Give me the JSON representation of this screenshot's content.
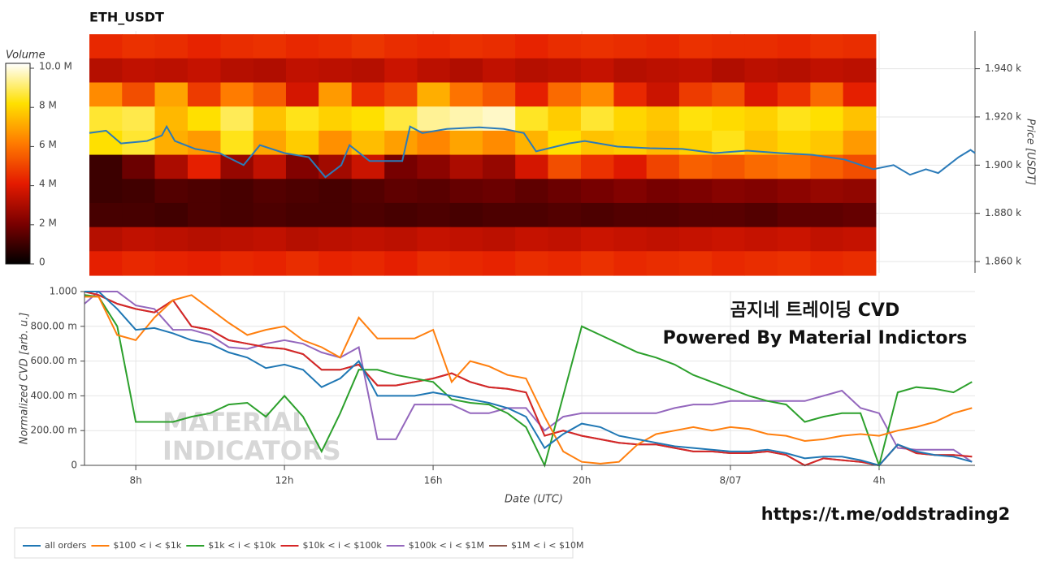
{
  "chart_data": [
    {
      "type": "heatmap",
      "title": "ETH_USDT",
      "y_label": "Price [USDT]",
      "colorbar_label": "Volume",
      "xlim": [
        6.75,
        30.58
      ],
      "ylim": [
        1855.3,
        1955.7
      ],
      "yticks": [
        {
          "value": 1860,
          "label": "1.860 k"
        },
        {
          "value": 1880,
          "label": "1.880 k"
        },
        {
          "value": 1900,
          "label": "1.900 k"
        },
        {
          "value": 1920,
          "label": "1.920 k"
        },
        {
          "value": 1940,
          "label": "1.940 k"
        }
      ],
      "zlim": [
        0,
        10250000
      ],
      "zticks": [
        0,
        {
          "value": 2000000,
          "label": "2 M"
        },
        {
          "value": 4000000,
          "label": "4 M"
        },
        {
          "value": 6000000,
          "label": "6 M"
        },
        {
          "value": 8000000,
          "label": "8 M"
        },
        {
          "value": 10000000,
          "label": "10.0 M"
        }
      ],
      "colorscale": [
        "#000000",
        "#7a0000",
        "#e41a00",
        "#ff7a00",
        "#ffe000",
        "#ffffff"
      ],
      "x": [
        7.19,
        8.07,
        8.95,
        9.84,
        10.72,
        11.6,
        12.48,
        13.36,
        14.25,
        15.13,
        16.01,
        16.89,
        17.77,
        18.65,
        19.53,
        20.42,
        21.3,
        22.18,
        23.06,
        23.94,
        24.82,
        25.71,
        26.59,
        27.47
      ],
      "y": [
        1949.3,
        1939.3,
        1929.3,
        1919.3,
        1909.3,
        1899.3,
        1889.3,
        1879.3,
        1869.3,
        1859.3
      ],
      "z": [
        [
          4400000.0,
          4600000.0,
          4500000.0,
          4300000.0,
          4500000.0,
          4600000.0,
          4400000.0,
          4500000.0,
          4700000.0,
          4500000.0,
          4400000.0,
          4600000.0,
          4500000.0,
          4300000.0,
          4500000.0,
          4600000.0,
          4500000.0,
          4400000.0,
          4600000.0,
          4500000.0,
          4500000.0,
          4400000.0,
          4600000.0,
          4500000.0
        ],
        [
          3200000.0,
          3400000.0,
          3300000.0,
          3500000.0,
          3200000.0,
          3100000.0,
          3400000.0,
          3300000.0,
          3200000.0,
          3600000.0,
          3300000.0,
          3100000.0,
          3400000.0,
          3200000.0,
          3300000.0,
          3500000.0,
          3200000.0,
          3300000.0,
          3400000.0,
          3100000.0,
          3300000.0,
          3200000.0,
          3400000.0,
          3300000.0
        ],
        [
          6500000.0,
          5200000.0,
          7000000.0,
          4800000.0,
          6200000.0,
          5500000.0,
          3800000.0,
          6800000.0,
          4500000.0,
          5000000.0,
          7200000.0,
          6000000.0,
          5400000.0,
          4200000.0,
          5800000.0,
          6500000.0,
          4400000.0,
          3600000.0,
          4800000.0,
          5200000.0,
          3900000.0,
          4600000.0,
          5800000.0,
          4200000.0
        ],
        [
          8600000.0,
          8800000.0,
          7400000.0,
          8200000.0,
          8900000.0,
          7600000.0,
          8400000.0,
          7900000.0,
          8200000.0,
          8700000.0,
          9400000.0,
          9600000.0,
          9800000.0,
          8500000.0,
          7800000.0,
          8600000.0,
          8000000.0,
          7700000.0,
          8300000.0,
          8100000.0,
          7900000.0,
          8400000.0,
          8200000.0,
          7600000.0
        ],
        [
          8200000.0,
          8600000.0,
          7200000.0,
          6800000.0,
          8400000.0,
          7000000.0,
          7800000.0,
          6600000.0,
          7500000.0,
          6900000.0,
          6400000.0,
          7000000.0,
          6500000.0,
          7300000.0,
          8200000.0,
          7600000.0,
          7800000.0,
          7400000.0,
          7900000.0,
          8400000.0,
          7600000.0,
          8000000.0,
          7700000.0,
          6800000.0
        ],
        [
          1000000.0,
          1800000.0,
          3000000.0,
          4200000.0,
          2600000.0,
          3400000.0,
          2200000.0,
          2800000.0,
          3600000.0,
          2000000.0,
          2400000.0,
          3000000.0,
          2600000.0,
          3800000.0,
          5200000.0,
          4600000.0,
          4000000.0,
          5000000.0,
          5600000.0,
          5400000.0,
          5800000.0,
          6000000.0,
          5600000.0,
          5200000.0
        ],
        [
          1000000.0,
          1100000.0,
          1400000.0,
          1300000.0,
          1200000.0,
          1400000.0,
          1300000.0,
          1200000.0,
          1400000.0,
          1600000.0,
          1500000.0,
          1700000.0,
          1800000.0,
          1600000.0,
          1800000.0,
          2000000.0,
          2200000.0,
          2000000.0,
          2100000.0,
          2300000.0,
          2200000.0,
          2400000.0,
          2600000.0,
          2500000.0
        ],
        [
          1200000.0,
          1200000.0,
          1100000.0,
          1300000.0,
          1200000.0,
          1300000.0,
          1200000.0,
          1200000.0,
          1300000.0,
          1200000.0,
          1300000.0,
          1200000.0,
          1300000.0,
          1300000.0,
          1400000.0,
          1300000.0,
          1400000.0,
          1400000.0,
          1500000.0,
          1500000.0,
          1400000.0,
          1600000.0,
          1600000.0,
          1700000.0
        ],
        [
          3200000.0,
          3400000.0,
          3300000.0,
          3200000.0,
          3300000.0,
          3400000.0,
          3200000.0,
          3300000.0,
          3400000.0,
          3300000.0,
          3500000.0,
          3400000.0,
          3300000.0,
          3500000.0,
          3400000.0,
          3600000.0,
          3500000.0,
          3400000.0,
          3500000.0,
          3600000.0,
          3500000.0,
          3600000.0,
          3400000.0,
          3500000.0
        ],
        [
          4200000.0,
          4400000.0,
          4300000.0,
          4200000.0,
          4400000.0,
          4300000.0,
          4500000.0,
          4300000.0,
          4400000.0,
          4200000.0,
          4500000.0,
          4400000.0,
          4300000.0,
          4500000.0,
          4400000.0,
          4600000.0,
          4400000.0,
          4500000.0,
          4600000.0,
          4400000.0,
          4500000.0,
          4600000.0,
          4400000.0,
          4500000.0
        ]
      ],
      "line": {
        "color": "#2b7bb9",
        "x": [
          6.75,
          7.2,
          7.6,
          8.3,
          8.7,
          8.83,
          9.05,
          9.6,
          10.25,
          10.9,
          11.34,
          12,
          12.65,
          13.1,
          13.53,
          13.75,
          14.29,
          15.17,
          15.38,
          15.71,
          16.37,
          17.24,
          17.9,
          18.44,
          18.77,
          19.65,
          20.08,
          20.96,
          21.83,
          22.71,
          23.58,
          24.45,
          25.33,
          26.2,
          27.08,
          27.84,
          28.39,
          28.83,
          29.26,
          29.59,
          30.14,
          30.46,
          30.58
        ],
        "values": [
          1913.3,
          1914.3,
          1909,
          1910,
          1912.3,
          1916,
          1910,
          1906.7,
          1905,
          1900,
          1908.3,
          1905,
          1903.3,
          1895,
          1900,
          1908.3,
          1901.7,
          1901.7,
          1916,
          1913.3,
          1915,
          1915.7,
          1915,
          1913.3,
          1905.7,
          1909,
          1910,
          1907.7,
          1907,
          1906.7,
          1905,
          1906,
          1905,
          1904.3,
          1902.3,
          1898.3,
          1900,
          1896,
          1898.3,
          1896.7,
          1903.3,
          1906.3,
          1905
        ]
      }
    },
    {
      "type": "line",
      "x_label": "Date (UTC)",
      "y_label": "Normalized CVD [arb. u.]",
      "xlim": [
        6.62,
        30.58
      ],
      "ylim": [
        0,
        1.0
      ],
      "xticks": [
        {
          "value": 8,
          "label": "8h"
        },
        {
          "value": 12,
          "label": "12h"
        },
        {
          "value": 16,
          "label": "16h"
        },
        {
          "value": 20,
          "label": "20h"
        },
        {
          "value": 24,
          "label": "8/07"
        },
        {
          "value": 28,
          "label": "4h"
        }
      ],
      "yticks": [
        0,
        {
          "value": 0.2,
          "label": "200.00 m"
        },
        {
          "value": 0.4,
          "label": "400.00 m"
        },
        {
          "value": 0.6,
          "label": "600.00 m"
        },
        {
          "value": 0.8,
          "label": "800.00 m"
        },
        {
          "value": 1,
          "label": "1.000"
        }
      ],
      "grid": true,
      "annotations": [
        "곰지네 트레이딩 CVD",
        "Powered By Material Indictors",
        "https://t.me/oddstrading2",
        "MATERIAL",
        "INDICATORS"
      ],
      "x": [
        6.62,
        7,
        7.5,
        8,
        8.5,
        9,
        9.5,
        10,
        10.5,
        11,
        11.5,
        12,
        12.5,
        13,
        13.5,
        14,
        14.5,
        15,
        15.5,
        16,
        16.5,
        17,
        17.5,
        18,
        18.5,
        19,
        19.5,
        20,
        20.5,
        21,
        21.5,
        22,
        22.5,
        23,
        23.5,
        24,
        24.5,
        25,
        25.5,
        26,
        26.5,
        27,
        27.5,
        28,
        28.5,
        29,
        29.5,
        30,
        30.5
      ],
      "series": [
        {
          "name": "all orders",
          "color": "#1f77b4",
          "values": [
            1.0,
            1.0,
            0.9,
            0.78,
            0.79,
            0.76,
            0.72,
            0.7,
            0.65,
            0.62,
            0.56,
            0.58,
            0.55,
            0.45,
            0.5,
            0.6,
            0.4,
            0.4,
            0.4,
            0.42,
            0.4,
            0.38,
            0.36,
            0.33,
            0.28,
            0.1,
            0.18,
            0.24,
            0.22,
            0.17,
            0.15,
            0.13,
            0.11,
            0.1,
            0.09,
            0.08,
            0.08,
            0.09,
            0.07,
            0.04,
            0.05,
            0.05,
            0.03,
            0.0,
            0.12,
            0.08,
            0.06,
            0.05,
            0.02
          ]
        },
        {
          "name": "$100 < i < $1k",
          "color": "#ff7f0e",
          "values": [
            0.97,
            0.97,
            0.75,
            0.72,
            0.85,
            0.95,
            0.98,
            0.9,
            0.82,
            0.75,
            0.78,
            0.8,
            0.72,
            0.68,
            0.62,
            0.85,
            0.73,
            0.73,
            0.73,
            0.78,
            0.48,
            0.6,
            0.57,
            0.52,
            0.5,
            0.28,
            0.08,
            0.02,
            0.01,
            0.02,
            0.12,
            0.18,
            0.2,
            0.22,
            0.2,
            0.22,
            0.21,
            0.18,
            0.17,
            0.14,
            0.15,
            0.17,
            0.18,
            0.17,
            0.2,
            0.22,
            0.25,
            0.3,
            0.33
          ]
        },
        {
          "name": "$1k < i < $10k",
          "color": "#2ca02c",
          "values": [
            0.98,
            0.97,
            0.8,
            0.25,
            0.25,
            0.25,
            0.28,
            0.3,
            0.35,
            0.36,
            0.28,
            0.4,
            0.28,
            0.08,
            0.3,
            0.55,
            0.55,
            0.52,
            0.5,
            0.48,
            0.38,
            0.36,
            0.35,
            0.3,
            0.22,
            0.0,
            0.4,
            0.8,
            0.75,
            0.7,
            0.65,
            0.62,
            0.58,
            0.52,
            0.48,
            0.44,
            0.4,
            0.37,
            0.35,
            0.25,
            0.28,
            0.3,
            0.3,
            0.0,
            0.42,
            0.45,
            0.44,
            0.42,
            0.48
          ]
        },
        {
          "name": "$10k < i < $100k",
          "color": "#d62728",
          "values": [
            1.0,
            0.98,
            0.93,
            0.9,
            0.88,
            0.95,
            0.8,
            0.78,
            0.72,
            0.7,
            0.68,
            0.67,
            0.64,
            0.55,
            0.55,
            0.58,
            0.46,
            0.46,
            0.48,
            0.5,
            0.53,
            0.48,
            0.45,
            0.44,
            0.42,
            0.17,
            0.2,
            0.17,
            0.15,
            0.13,
            0.12,
            0.12,
            0.1,
            0.08,
            0.08,
            0.07,
            0.07,
            0.08,
            0.06,
            0.0,
            0.04,
            0.03,
            0.02,
            0.0,
            0.12,
            0.07,
            0.06,
            0.06,
            0.05
          ]
        },
        {
          "name": "$100k < i < $1M",
          "color": "#9467bd",
          "values": [
            0.93,
            1.0,
            1.0,
            0.92,
            0.9,
            0.78,
            0.78,
            0.75,
            0.68,
            0.67,
            0.7,
            0.72,
            0.7,
            0.65,
            0.62,
            0.68,
            0.15,
            0.15,
            0.35,
            0.35,
            0.35,
            0.3,
            0.3,
            0.33,
            0.33,
            0.2,
            0.28,
            0.3,
            0.3,
            0.3,
            0.3,
            0.3,
            0.33,
            0.35,
            0.35,
            0.37,
            0.37,
            0.37,
            0.37,
            0.37,
            0.4,
            0.43,
            0.33,
            0.3,
            0.1,
            0.09,
            0.09,
            0.09,
            0.02
          ]
        },
        {
          "name": "$1M < i < $10M",
          "color": "#8c564b",
          "values": [
            1.0,
            0.98,
            0.93,
            0.9,
            0.88,
            0.95,
            0.8,
            0.78,
            0.72,
            0.7,
            0.68,
            0.67,
            0.64,
            0.55,
            0.55,
            0.58,
            0.46,
            0.46,
            0.48,
            0.5,
            0.53,
            0.48,
            0.45,
            0.44,
            0.42,
            0.17,
            0.2,
            0.17,
            0.15,
            0.13,
            0.12,
            0.12,
            0.1,
            0.08,
            0.08,
            0.07,
            0.07,
            0.08,
            0.06,
            0.0,
            0.04,
            0.03,
            0.02,
            0.0,
            0.12,
            0.07,
            0.06,
            0.06,
            0.05
          ]
        }
      ]
    }
  ]
}
